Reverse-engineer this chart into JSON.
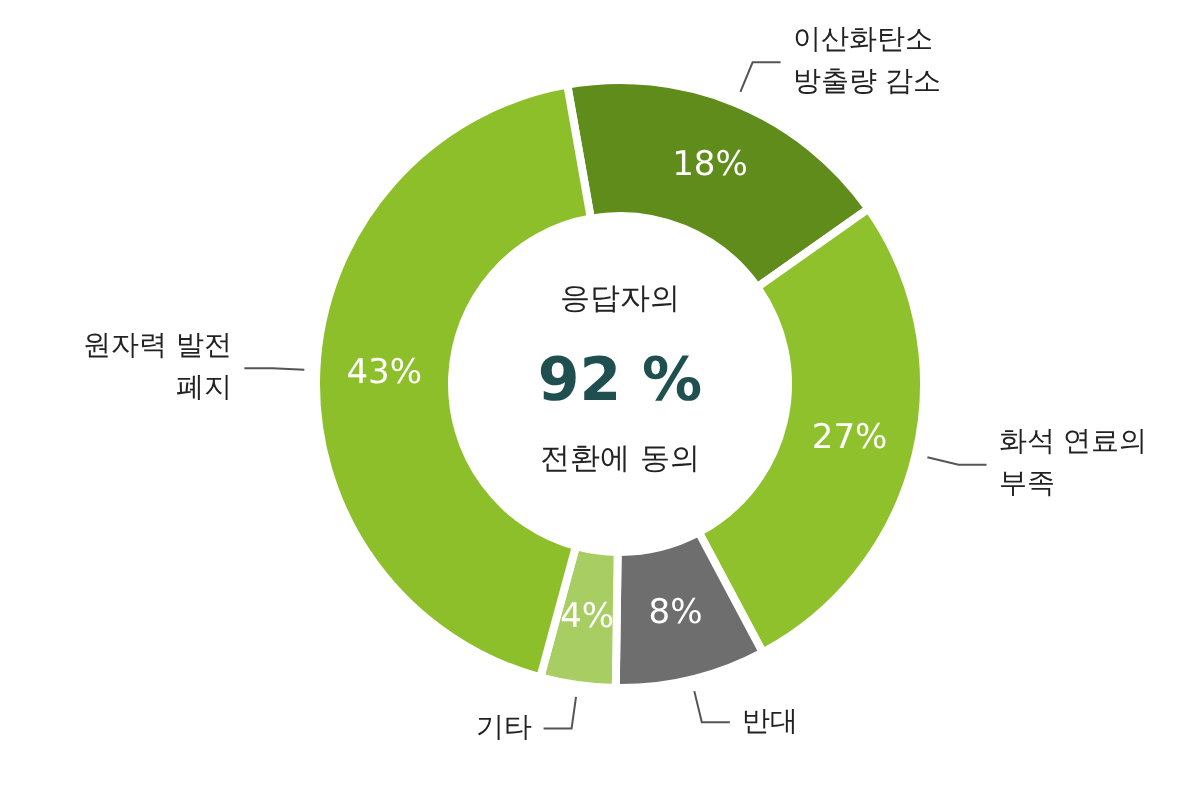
{
  "chart_data": {
    "type": "donut",
    "categories": [
      "이산화탄소 방출량 감소",
      "화석 연료의 부족",
      "반대",
      "기타",
      "원자력 발전 폐지"
    ],
    "values": [
      18,
      27,
      8,
      4,
      43
    ],
    "value_labels": [
      "18%",
      "27%",
      "8%",
      "4%",
      "43%"
    ],
    "colors": [
      "#5f8c1b",
      "#8fc12c",
      "#6e6e6e",
      "#a8cd62",
      "#8cbf2a"
    ],
    "annotations": [
      "응답자의",
      "92 %",
      "전환에 동의"
    ]
  }
}
